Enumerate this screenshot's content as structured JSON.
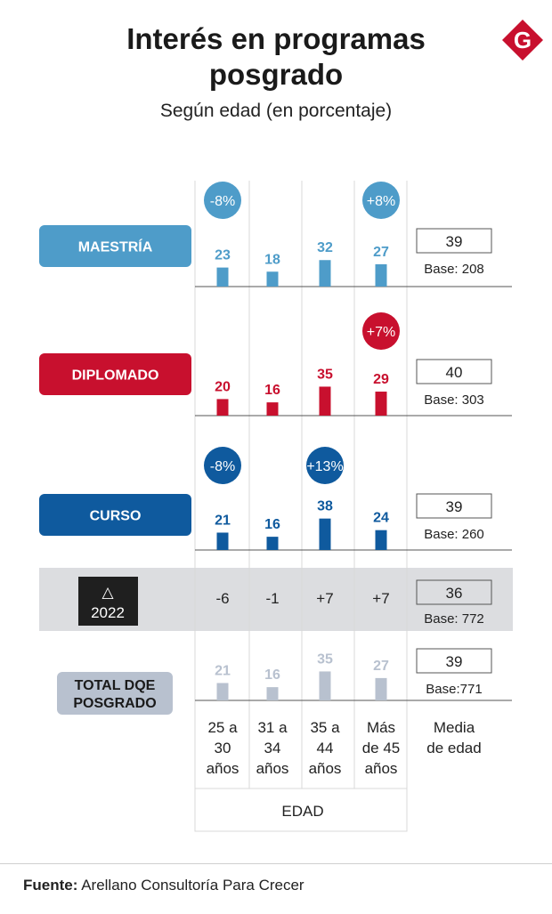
{
  "title_line1": "Interés en programas",
  "title_line2": "posgrado",
  "subtitle": "Según edad (en porcentaje)",
  "logo": {
    "letter": "G",
    "color": "#c8102e"
  },
  "footer": {
    "label": "Fuente:",
    "text": "Arellano Consultoría Para Crecer"
  },
  "colors": {
    "maestria": "#4e9cc9",
    "diplomado": "#c8102e",
    "curso": "#0f5a9e",
    "total": "#b8c1cf",
    "delta_row_bg": "#dcdde0",
    "delta_label_bg": "#1f1f1f"
  },
  "chart_data": {
    "type": "bar",
    "categories": [
      "25 a 30 años",
      "31 a 34 años",
      "35 a 44 años",
      "Más de 45 años"
    ],
    "category_lines": [
      [
        "25 a",
        "30",
        "años"
      ],
      [
        "31 a",
        "34",
        "años"
      ],
      [
        "35 a",
        "44",
        "años"
      ],
      [
        "Más",
        "de 45",
        "años"
      ]
    ],
    "xlabel": "EDAD",
    "extra_column_lines": [
      "Media",
      "de edad"
    ],
    "series": [
      {
        "name": "MAESTRÍA",
        "values": [
          23,
          18,
          32,
          27
        ],
        "value_labels": [
          "23",
          "18",
          "32",
          "27"
        ],
        "changes": [
          "-8%",
          null,
          null,
          "+8%"
        ],
        "media": "39",
        "base": "Base: 208"
      },
      {
        "name": "DIPLOMADO",
        "values": [
          20,
          16,
          35,
          29
        ],
        "value_labels": [
          "20",
          "16",
          "35",
          "29"
        ],
        "changes": [
          null,
          null,
          null,
          "+7%"
        ],
        "media": "40",
        "base": "Base: 303"
      },
      {
        "name": "CURSO",
        "values": [
          21,
          16,
          38,
          24
        ],
        "value_labels": [
          "21",
          "16",
          "38",
          "24"
        ],
        "changes": [
          "-8%",
          null,
          "+13%",
          null
        ],
        "media": "39",
        "base": "Base: 260"
      }
    ],
    "delta_row": {
      "symbol": "△",
      "label": "2022",
      "values": [
        "-6",
        "-1",
        "+7",
        "+7"
      ],
      "media": "36",
      "base": "Base: 772"
    },
    "total": {
      "name_lines": [
        "TOTAL DQE",
        "POSGRADO"
      ],
      "values": [
        21,
        16,
        35,
        27
      ],
      "value_labels": [
        "21",
        "16",
        "35",
        "27"
      ],
      "media": "39",
      "base": "Base:771"
    }
  }
}
